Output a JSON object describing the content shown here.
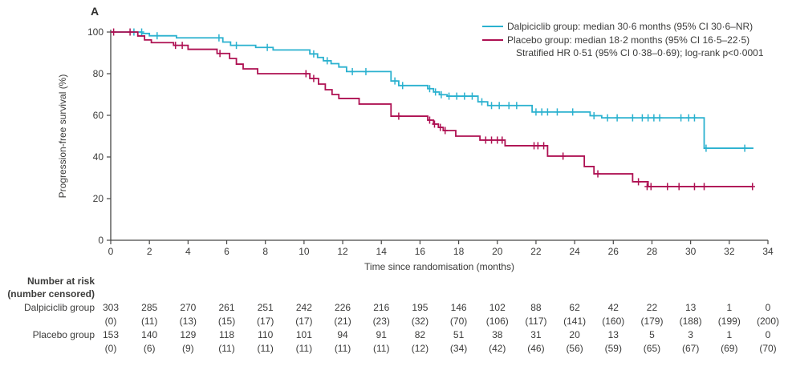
{
  "panel_label": "A",
  "colors": {
    "dalpiciclib": "#2ab1cf",
    "placebo": "#ae1052",
    "axis": "#474746",
    "text": "#3b3b3a"
  },
  "legend": {
    "dalpiciclib_label": "Dalpiciclib group: median 30·6 months (95% CI 30·6–NR)",
    "placebo_label": "Placebo group: median 18·2 months (95% CI 16·5–22·5)",
    "hr_line": "Stratified HR 0·51 (95% CI 0·38–0·69); log-rank p<0·0001"
  },
  "chart_data": {
    "type": "line",
    "subtype": "kaplan-meier-step",
    "title": "",
    "xlabel": "Time since randomisation (months)",
    "ylabel": "Progression-free survival (%)",
    "xlim": [
      0,
      34
    ],
    "ylim": [
      0,
      100
    ],
    "x_ticks": [
      0,
      2,
      4,
      6,
      8,
      10,
      12,
      14,
      16,
      18,
      20,
      22,
      24,
      26,
      28,
      30,
      32,
      34
    ],
    "y_ticks": [
      0,
      20,
      40,
      60,
      80,
      100
    ],
    "grid": false,
    "legend_position": "top-right",
    "series": [
      {
        "name": "Dalpiciclib group",
        "color": "#2ab1cf",
        "median_months": "30·6",
        "ci": "30·6–NR",
        "steps": [
          [
            0,
            100
          ],
          [
            1.6,
            99.3
          ],
          [
            2.0,
            98.2
          ],
          [
            3.4,
            97.2
          ],
          [
            5.8,
            95.2
          ],
          [
            6.2,
            93.6
          ],
          [
            7.5,
            92.6
          ],
          [
            8.4,
            91.4
          ],
          [
            10.3,
            89.5
          ],
          [
            10.7,
            87.8
          ],
          [
            11.0,
            86.2
          ],
          [
            11.4,
            84.8
          ],
          [
            11.8,
            83.2
          ],
          [
            12.2,
            81.0
          ],
          [
            14.5,
            76.5
          ],
          [
            14.9,
            74.3
          ],
          [
            16.4,
            72.8
          ],
          [
            16.7,
            71.2
          ],
          [
            17.0,
            69.9
          ],
          [
            17.4,
            69.2
          ],
          [
            19.0,
            66.5
          ],
          [
            19.5,
            64.7
          ],
          [
            21.8,
            61.6
          ],
          [
            24.8,
            59.8
          ],
          [
            25.4,
            58.8
          ],
          [
            30.7,
            44.2
          ],
          [
            33.25,
            44.2
          ]
        ],
        "censors": [
          [
            1.2,
            100
          ],
          [
            1.6,
            100
          ],
          [
            2.4,
            98.2
          ],
          [
            5.6,
            97.2
          ],
          [
            6.5,
            93.6
          ],
          [
            8.1,
            92.6
          ],
          [
            10.5,
            89.5
          ],
          [
            11.2,
            86.2
          ],
          [
            12.5,
            81
          ],
          [
            13.2,
            81
          ],
          [
            14.7,
            76.5
          ],
          [
            15.1,
            74.3
          ],
          [
            16.5,
            72.8
          ],
          [
            16.8,
            71.2
          ],
          [
            17.1,
            69.9
          ],
          [
            17.5,
            69.2
          ],
          [
            17.9,
            69.2
          ],
          [
            18.3,
            69.2
          ],
          [
            18.7,
            69.2
          ],
          [
            19.2,
            66.5
          ],
          [
            19.7,
            64.7
          ],
          [
            20.1,
            64.7
          ],
          [
            20.6,
            64.7
          ],
          [
            21.0,
            64.7
          ],
          [
            22.0,
            61.6
          ],
          [
            22.3,
            61.6
          ],
          [
            22.6,
            61.6
          ],
          [
            23.1,
            61.6
          ],
          [
            23.9,
            61.6
          ],
          [
            25.0,
            59.8
          ],
          [
            25.7,
            58.8
          ],
          [
            26.2,
            58.8
          ],
          [
            27.0,
            58.8
          ],
          [
            27.5,
            58.8
          ],
          [
            27.8,
            58.8
          ],
          [
            28.1,
            58.8
          ],
          [
            28.4,
            58.8
          ],
          [
            29.5,
            58.8
          ],
          [
            29.9,
            58.8
          ],
          [
            30.2,
            58.8
          ],
          [
            30.8,
            44.2
          ],
          [
            32.8,
            44.2
          ]
        ]
      },
      {
        "name": "Placebo group",
        "color": "#ae1052",
        "median_months": "18·2",
        "ci": "16·5–22·5",
        "steps": [
          [
            0,
            100
          ],
          [
            1.4,
            98.1
          ],
          [
            1.75,
            96.2
          ],
          [
            2.1,
            94.9
          ],
          [
            3.25,
            93.6
          ],
          [
            4.0,
            91.7
          ],
          [
            5.5,
            89.7
          ],
          [
            6.15,
            87.3
          ],
          [
            6.5,
            84.6
          ],
          [
            6.85,
            82.3
          ],
          [
            7.6,
            80.0
          ],
          [
            10.3,
            77.7
          ],
          [
            10.75,
            75.0
          ],
          [
            11.1,
            72.3
          ],
          [
            11.45,
            70.0
          ],
          [
            11.8,
            68.1
          ],
          [
            12.85,
            65.4
          ],
          [
            14.5,
            59.6
          ],
          [
            16.4,
            57.7
          ],
          [
            16.7,
            55.8
          ],
          [
            16.95,
            54.2
          ],
          [
            17.2,
            52.7
          ],
          [
            17.85,
            50.0
          ],
          [
            19.1,
            48.1
          ],
          [
            20.4,
            45.4
          ],
          [
            22.6,
            40.4
          ],
          [
            24.5,
            35.4
          ],
          [
            25.0,
            31.9
          ],
          [
            27.0,
            28.1
          ],
          [
            27.8,
            25.8
          ],
          [
            33.2,
            25.8
          ]
        ],
        "censors": [
          [
            0.15,
            100
          ],
          [
            1.0,
            100
          ],
          [
            3.35,
            93.6
          ],
          [
            3.7,
            93.6
          ],
          [
            5.65,
            89.7
          ],
          [
            10.1,
            80.0
          ],
          [
            10.5,
            77.7
          ],
          [
            14.9,
            59.6
          ],
          [
            16.5,
            57.7
          ],
          [
            16.75,
            55.8
          ],
          [
            17.05,
            54.2
          ],
          [
            17.3,
            52.7
          ],
          [
            19.4,
            48.1
          ],
          [
            19.7,
            48.1
          ],
          [
            20.0,
            48.1
          ],
          [
            20.25,
            48.1
          ],
          [
            21.9,
            45.4
          ],
          [
            22.1,
            45.4
          ],
          [
            22.4,
            45.4
          ],
          [
            23.4,
            40.4
          ],
          [
            25.2,
            31.9
          ],
          [
            27.3,
            28.1
          ],
          [
            27.75,
            25.8
          ],
          [
            27.95,
            25.8
          ],
          [
            28.8,
            25.8
          ],
          [
            29.4,
            25.8
          ],
          [
            30.2,
            25.8
          ],
          [
            30.7,
            25.8
          ],
          [
            33.2,
            25.8
          ]
        ]
      }
    ]
  },
  "risk_table": {
    "header_line1": "Number at risk",
    "header_line2": "(number censored)",
    "time_points": [
      0,
      2,
      4,
      6,
      8,
      10,
      12,
      14,
      16,
      18,
      20,
      22,
      24,
      26,
      28,
      30,
      32,
      34
    ],
    "rows": [
      {
        "label": "Dalpiciclib group",
        "at_risk": [
          303,
          285,
          270,
          261,
          251,
          242,
          226,
          216,
          195,
          146,
          102,
          88,
          62,
          42,
          22,
          13,
          1,
          0
        ],
        "censored": [
          "(0)",
          "(11)",
          "(13)",
          "(15)",
          "(17)",
          "(17)",
          "(21)",
          "(23)",
          "(32)",
          "(70)",
          "(106)",
          "(117)",
          "(141)",
          "(160)",
          "(179)",
          "(188)",
          "(199)",
          "(200)"
        ]
      },
      {
        "label": "Placebo group",
        "at_risk": [
          153,
          140,
          129,
          118,
          110,
          101,
          94,
          91,
          82,
          51,
          38,
          31,
          20,
          13,
          5,
          3,
          1,
          0
        ],
        "censored": [
          "(0)",
          "(6)",
          "(9)",
          "(11)",
          "(11)",
          "(11)",
          "(11)",
          "(11)",
          "(12)",
          "(34)",
          "(42)",
          "(46)",
          "(56)",
          "(59)",
          "(65)",
          "(67)",
          "(69)",
          "(70)"
        ]
      }
    ]
  }
}
